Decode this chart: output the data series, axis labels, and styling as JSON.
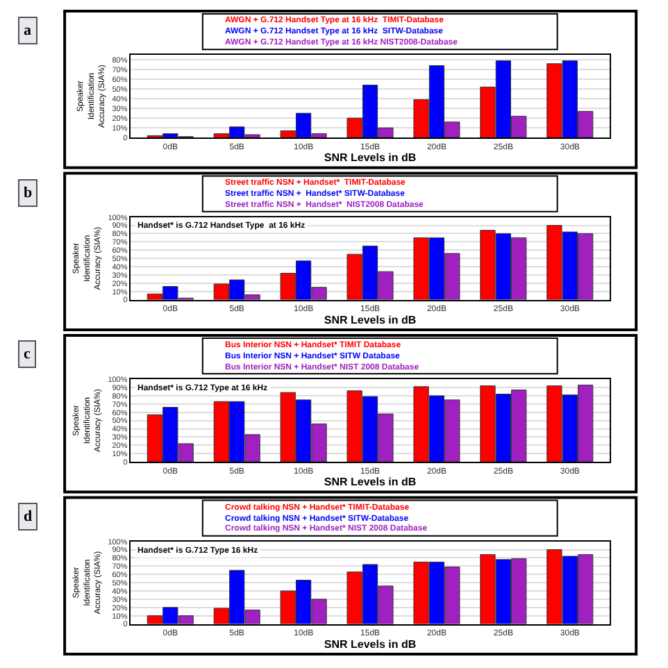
{
  "chart_data": [
    {
      "type": "bar",
      "annotations": [
        "a"
      ],
      "xlabel": "SNR Levels in dB",
      "ylabel": "Speaker Identification Accuracy (SIA%)",
      "categories": [
        "0dB",
        "5dB",
        "10dB",
        "15dB",
        "20dB",
        "25dB",
        "30dB"
      ],
      "ylim": [
        0,
        85
      ],
      "yticks": [
        {
          "value": 0,
          "label": "0"
        },
        {
          "value": 10,
          "label": "10%"
        },
        {
          "value": 20,
          "label": "20%"
        },
        {
          "value": 30,
          "label": "30%"
        },
        {
          "value": 40,
          "label": "40%"
        },
        {
          "value": 50,
          "label": "50%"
        },
        {
          "value": 60,
          "label": "60%"
        },
        {
          "value": 70,
          "label": "70%"
        },
        {
          "value": 80,
          "label": "80%"
        }
      ],
      "grid": "y",
      "legend": "top",
      "series": [
        {
          "name": "AWGN + G.712 Handset Type at 16 kHz  TIMIT-Database",
          "color": "#ff0000",
          "values": [
            2,
            4,
            7,
            20,
            39,
            52,
            76
          ]
        },
        {
          "name": "AWGN + G.712 Handset Type at 16 kHz  SITW-Database",
          "color": "#0000ff",
          "values": [
            4,
            11,
            25,
            54,
            74,
            79,
            79
          ]
        },
        {
          "name": "AWGN + G.712 Handset Type at 16 kHz NIST2008-Database",
          "color": "#a020c0",
          "values": [
            1,
            3,
            4,
            10,
            16,
            22,
            27
          ]
        }
      ]
    },
    {
      "type": "bar",
      "annotations": [
        "b",
        "Handset* is G.712 Handset Type  at 16 kHz"
      ],
      "xlabel": "SNR Levels in dB",
      "ylabel": "Speaker Identification Accuracy (SIA%)",
      "categories": [
        "0dB",
        "5dB",
        "10dB",
        "15dB",
        "20dB",
        "25dB",
        "30dB"
      ],
      "ylim": [
        0,
        100
      ],
      "yticks": [
        {
          "value": 0,
          "label": "0"
        },
        {
          "value": 10,
          "label": "10%"
        },
        {
          "value": 20,
          "label": "20%"
        },
        {
          "value": 30,
          "label": "30%"
        },
        {
          "value": 40,
          "label": "40%"
        },
        {
          "value": 50,
          "label": "50%"
        },
        {
          "value": 60,
          "label": "60%"
        },
        {
          "value": 70,
          "label": "70%"
        },
        {
          "value": 80,
          "label": "80%"
        },
        {
          "value": 90,
          "label": "90%"
        },
        {
          "value": 100,
          "label": "100%"
        }
      ],
      "grid": "y",
      "legend": "top",
      "series": [
        {
          "name": "Street traffic NSN + Handset*  TIMIT-Database",
          "color": "#ff0000",
          "values": [
            7,
            19,
            32,
            55,
            75,
            84,
            90
          ]
        },
        {
          "name": "Street traffic NSN +  Handset* SITW-Database",
          "color": "#0000ff",
          "values": [
            16,
            24,
            47,
            65,
            75,
            80,
            82
          ]
        },
        {
          "name": "Street traffic NSN +  Handset*  NIST2008 Database",
          "color": "#a020c0",
          "values": [
            2,
            6,
            15,
            34,
            56,
            75,
            80
          ]
        }
      ]
    },
    {
      "type": "bar",
      "annotations": [
        "c",
        "Handset* is G.712 Type at 16 kHz"
      ],
      "xlabel": "SNR Levels in dB",
      "ylabel": "Speaker Identification Accuracy (SIA%)",
      "categories": [
        "0dB",
        "5dB",
        "10dB",
        "15dB",
        "20dB",
        "25dB",
        "30dB"
      ],
      "ylim": [
        0,
        100
      ],
      "yticks": [
        {
          "value": 0,
          "label": "0"
        },
        {
          "value": 10,
          "label": "10%"
        },
        {
          "value": 20,
          "label": "20%"
        },
        {
          "value": 30,
          "label": "30%"
        },
        {
          "value": 40,
          "label": "40%"
        },
        {
          "value": 50,
          "label": "50%"
        },
        {
          "value": 60,
          "label": "60%"
        },
        {
          "value": 70,
          "label": "70%"
        },
        {
          "value": 80,
          "label": "80%"
        },
        {
          "value": 90,
          "label": "90%"
        },
        {
          "value": 100,
          "label": "100%"
        }
      ],
      "grid": "y",
      "legend": "top",
      "series": [
        {
          "name": "Bus Interior NSN + Handset* TIMIT Database",
          "color": "#ff0000",
          "values": [
            57,
            73,
            84,
            86,
            91,
            92,
            92
          ]
        },
        {
          "name": "Bus Interior NSN + Handset* SITW Database",
          "color": "#0000ff",
          "values": [
            66,
            73,
            75,
            79,
            80,
            82,
            81
          ]
        },
        {
          "name": "Bus Interior NSN + Handset* NIST 2008 Database",
          "color": "#a020c0",
          "values": [
            22,
            33,
            46,
            58,
            75,
            87,
            93
          ]
        }
      ]
    },
    {
      "type": "bar",
      "annotations": [
        "d",
        "Handset* is G.712 Type 16 kHz"
      ],
      "xlabel": "SNR Levels in dB",
      "ylabel": "Speaker Identification Accuracy (SIA%)",
      "categories": [
        "0dB",
        "5dB",
        "10dB",
        "15dB",
        "20dB",
        "25dB",
        "30dB"
      ],
      "ylim": [
        0,
        100
      ],
      "yticks": [
        {
          "value": 0,
          "label": "0"
        },
        {
          "value": 10,
          "label": "10%"
        },
        {
          "value": 20,
          "label": "20%"
        },
        {
          "value": 30,
          "label": "30%"
        },
        {
          "value": 40,
          "label": "40%"
        },
        {
          "value": 50,
          "label": "50%"
        },
        {
          "value": 60,
          "label": "60%"
        },
        {
          "value": 70,
          "label": "70%"
        },
        {
          "value": 80,
          "label": "80%"
        },
        {
          "value": 90,
          "label": "90%"
        },
        {
          "value": 100,
          "label": "100%"
        }
      ],
      "grid": "y",
      "legend": "top",
      "series": [
        {
          "name": "Crowd talking NSN + Handset* TIMIT-Database",
          "color": "#ff0000",
          "values": [
            10,
            19,
            40,
            63,
            75,
            84,
            90
          ]
        },
        {
          "name": "Crowd talking NSN + Handset* SITW-Database",
          "color": "#0000ff",
          "values": [
            20,
            65,
            53,
            72,
            75,
            78,
            82
          ]
        },
        {
          "name": "Crowd talking NSN + Handset* NIST 2008 Database",
          "color": "#a020c0",
          "values": [
            10,
            17,
            30,
            46,
            69,
            79,
            84
          ]
        }
      ]
    }
  ]
}
